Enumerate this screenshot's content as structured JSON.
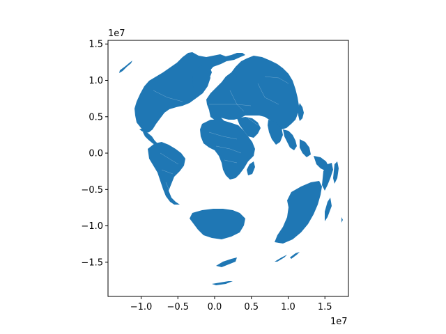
{
  "chart_data": {
    "type": "map",
    "projection": "azimuthal",
    "xlim": [
      -14500000,
      18200000
    ],
    "ylim": [
      -19700000,
      15500000
    ],
    "x_ticks": [
      -10000000,
      -5000000,
      0,
      5000000,
      10000000,
      15000000
    ],
    "x_tick_labels": [
      "−1.0",
      "−0.5",
      "0.0",
      "0.5",
      "1.0",
      "1.5"
    ],
    "y_ticks": [
      15000000,
      10000000,
      5000000,
      0,
      -5000000,
      -10000000,
      -15000000
    ],
    "y_tick_labels": [
      "1.5",
      "1.0",
      "0.5",
      "0.0",
      "−0.5",
      "−1.0",
      "−1.5"
    ],
    "x_offset_label": "1e7",
    "y_offset_label": "1e7",
    "fill_color": "#1f77b4",
    "edge_color": "#ffffff",
    "regions": [
      "north-america",
      "greenland",
      "eurasia",
      "africa",
      "south-america",
      "antarctica",
      "australia",
      "madagascar",
      "arabia",
      "southeast-asia",
      "new-zealand",
      "islands"
    ]
  }
}
